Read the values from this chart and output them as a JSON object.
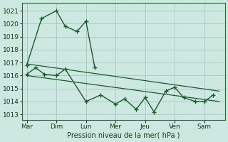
{
  "background_color": "#cce8e0",
  "grid_color": "#aaccc4",
  "line_color": "#1a5c2a",
  "marker_color": "#1a5c2a",
  "ylabel_ticks": [
    1013,
    1014,
    1015,
    1016,
    1017,
    1018,
    1019,
    1020,
    1021
  ],
  "ylim": [
    1012.6,
    1021.6
  ],
  "days": [
    "Mar",
    "Dim",
    "Lun",
    "Mer",
    "Jeu",
    "Ven",
    "Sam"
  ],
  "xlabel": "Pression niveau de la mer( hPa )",
  "series1_x": [
    0.0,
    0.5,
    1.0,
    1.3,
    1.7,
    2.0,
    2.3
  ],
  "series1_y": [
    1016.8,
    1020.4,
    1021.0,
    1019.8,
    1019.4,
    1020.2,
    1016.6
  ],
  "series2_x": [
    0.0,
    0.3,
    0.6,
    1.0,
    1.3,
    2.0,
    2.5,
    3.0,
    3.3,
    3.7,
    4.0,
    4.3,
    4.7,
    5.0,
    5.3,
    5.7,
    6.0,
    6.3
  ],
  "series2_y": [
    1016.1,
    1016.6,
    1016.1,
    1016.0,
    1016.5,
    1014.0,
    1014.5,
    1013.8,
    1014.2,
    1013.4,
    1014.3,
    1013.2,
    1014.8,
    1015.1,
    1014.3,
    1014.0,
    1014.0,
    1014.5
  ],
  "trend1_x": [
    0.0,
    6.5
  ],
  "trend1_y": [
    1016.9,
    1014.8
  ],
  "trend2_x": [
    0.0,
    6.5
  ],
  "trend2_y": [
    1016.0,
    1014.0
  ],
  "n_days": 7,
  "day_positions": [
    0,
    1,
    2,
    3,
    4,
    5,
    6
  ],
  "xlim_left": -0.15,
  "xlim_right": 6.7
}
